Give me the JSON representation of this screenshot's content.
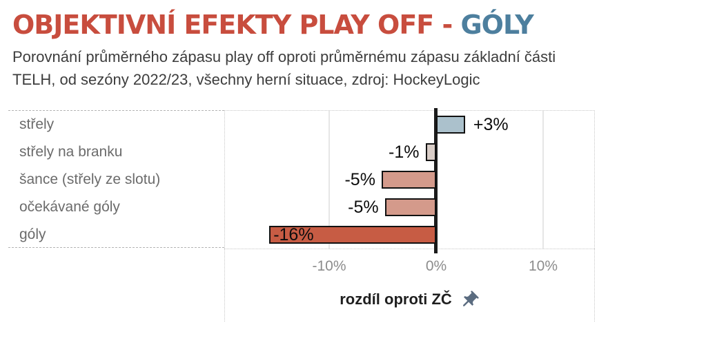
{
  "title": {
    "main": "OBJEKTIVNÍ EFEKTY PLAY OFF - ",
    "highlight": "GÓLY",
    "main_color": "#c84d3e",
    "highlight_color": "#4d7f9e"
  },
  "subtitle": {
    "line1": "Porovnání průměrného zápasu play off oproti průměrnému zápasu základní části",
    "line2": "TELH, od sezóny 2022/23, všechny herní situace, zdroj: HockeyLogic"
  },
  "chart_data": {
    "type": "bar",
    "orientation": "horizontal",
    "title": "OBJEKTIVNÍ EFEKTY PLAY OFF - GÓLY",
    "categories": [
      "střely",
      "střely na branku",
      "šance (střely ze slotu)",
      "očekávané góly",
      "góly"
    ],
    "values": [
      2.7,
      -1,
      -5.1,
      -4.8,
      -15.6
    ],
    "labels": [
      "+3%",
      "-1%",
      "-5%",
      "-5%",
      "-16%"
    ],
    "label_placement": [
      "right",
      "left",
      "left",
      "left",
      "inside"
    ],
    "bar_colors": [
      "#abc1cc",
      "#d9cdc7",
      "#d49a8b",
      "#d49a8b",
      "#c75c44"
    ],
    "bar_border_color": "#111111",
    "xlabel": "rozdíl oproti ZČ",
    "x_ticks": [
      "-10%",
      "0%",
      "10%"
    ],
    "x_tick_values": [
      -10,
      0,
      10
    ],
    "xlim": [
      -19.8,
      14.8
    ],
    "zero_line": true,
    "gridlines_at": [
      -10,
      10
    ],
    "legend": "none",
    "grid": "vertical gridlines at -10% and +10%"
  },
  "icons": {
    "pin": "pushpin-icon",
    "pin_color": "#5b6c80"
  }
}
